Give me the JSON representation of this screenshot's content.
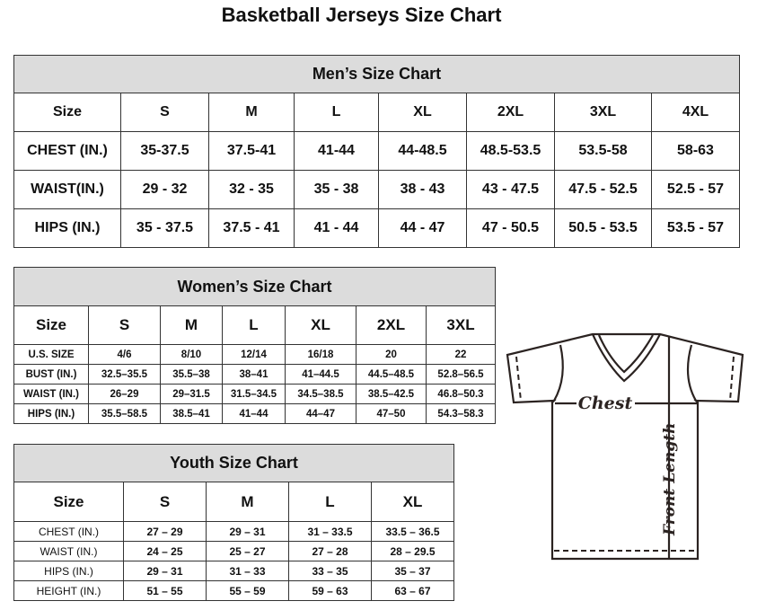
{
  "title": "Basketball Jerseys Size Chart",
  "men": {
    "heading": "Men’s Size Chart",
    "columns": [
      "Size",
      "S",
      "M",
      "L",
      "XL",
      "2XL",
      "3XL",
      "4XL"
    ],
    "rows": [
      [
        "CHEST (IN.)",
        "35-37.5",
        "37.5-41",
        "41-44",
        "44-48.5",
        "48.5-53.5",
        "53.5-58",
        "58-63"
      ],
      [
        "WAIST(IN.)",
        "29 - 32",
        "32 - 35",
        "35 - 38",
        "38 - 43",
        "43 - 47.5",
        "47.5 - 52.5",
        "52.5 - 57"
      ],
      [
        "HIPS (IN.)",
        "35 - 37.5",
        "37.5 - 41",
        "41 - 44",
        "44 - 47",
        "47 - 50.5",
        "50.5 - 53.5",
        "53.5 - 57"
      ]
    ]
  },
  "women": {
    "heading": "Women’s Size Chart",
    "columns": [
      "Size",
      "S",
      "M",
      "L",
      "XL",
      "2XL",
      "3XL"
    ],
    "rows": [
      [
        "U.S.  SIZE",
        "4/6",
        "8/10",
        "12/14",
        "16/18",
        "20",
        "22"
      ],
      [
        "BUST  (IN.)",
        "32.5–35.5",
        "35.5–38",
        "38–41",
        "41–44.5",
        "44.5–48.5",
        "52.8–56.5"
      ],
      [
        "WAIST  (IN.)",
        "26–29",
        "29–31.5",
        "31.5–34.5",
        "34.5–38.5",
        "38.5–42.5",
        "46.8–50.3"
      ],
      [
        "HIPS  (IN.)",
        "35.5–58.5",
        "38.5–41",
        "41–44",
        "44–47",
        "47–50",
        "54.3–58.3"
      ]
    ]
  },
  "youth": {
    "heading": "Youth Size Chart",
    "columns": [
      "Size",
      "S",
      "M",
      "L",
      "XL"
    ],
    "rows": [
      [
        "CHEST  (IN.)",
        "27  –  29",
        "29  –  31",
        "31  –  33.5",
        "33.5  –  36.5"
      ],
      [
        "WAIST  (IN.)",
        "24  –  25",
        "25  –  27",
        "27  –  28",
        "28  –  29.5"
      ],
      [
        "HIPS  (IN.)",
        "29  –  31",
        "31  –  33",
        "33  –  35",
        "35  –  37"
      ],
      [
        "HEIGHT  (IN.)",
        "51  –  55",
        "55  –  59",
        "59  –  63",
        "63  –  67"
      ]
    ]
  },
  "diagram": {
    "chest_label": "Chest",
    "length_label": "Front Length"
  }
}
